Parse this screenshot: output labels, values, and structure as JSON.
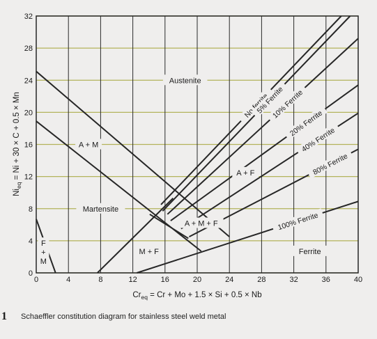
{
  "figure": {
    "number": "1",
    "caption": "Schaeffler constitution diagram for stainless steel weld metal"
  },
  "colors": {
    "background": "#efeeed",
    "grid_vertical": "#2a2a2a",
    "grid_horizontal": "#b3b35a",
    "line": "#262626"
  },
  "chart_data": {
    "type": "line",
    "title": "",
    "xlabel": {
      "main": "Cr",
      "sub": "eq",
      "rest": " = Cr + Mo + 1.5 × Si + 0.5 × Nb"
    },
    "ylabel": {
      "main": "Ni",
      "sub": "eq",
      "rest": " = Ni + 30 × C + 0.5 × Mn"
    },
    "xlim": [
      0,
      40
    ],
    "ylim": [
      0,
      32
    ],
    "xticks": [
      "0",
      "4",
      "8",
      "12",
      "16",
      "20",
      "24",
      "28",
      "32",
      "36",
      "40"
    ],
    "yticks": [
      "0",
      "4",
      "8",
      "12",
      "16",
      "20",
      "24",
      "28",
      "32"
    ],
    "grid": true,
    "ferrite_lines": [
      {
        "label": "No ferrite",
        "from": [
          15.5,
          8.5
        ],
        "to": [
          37.9,
          32
        ]
      },
      {
        "label": "5% Ferrite",
        "from": [
          15.7,
          7.7
        ],
        "to": [
          39.0,
          32
        ]
      },
      {
        "label": "10% Ferrite",
        "from": [
          16.3,
          7.3
        ],
        "to": [
          40,
          29.2
        ]
      },
      {
        "label": "20% Ferrite",
        "from": [
          16.7,
          6.5
        ],
        "to": [
          40,
          23.4
        ]
      },
      {
        "label": "40% Ferrite",
        "from": [
          18.0,
          5.5
        ],
        "to": [
          40,
          19.9
        ]
      },
      {
        "label": "80% Ferrite",
        "from": [
          19.0,
          4.5
        ],
        "to": [
          40,
          15.4
        ]
      },
      {
        "label": "100% Ferrite",
        "from": [
          12.5,
          0
        ],
        "to": [
          40,
          8.9
        ]
      }
    ],
    "boundaries": [
      {
        "name": "austenite-martensite",
        "from": [
          0,
          25.1
        ],
        "to": [
          24.0,
          4.5
        ]
      },
      {
        "name": "martensite-upper",
        "from": [
          0,
          18.9
        ],
        "to": [
          20.5,
          2.7
        ]
      },
      {
        "name": "martensite-ferrite",
        "from": [
          7.6,
          0
        ],
        "to": [
          17.0,
          9.3
        ]
      },
      {
        "name": "a-m-f-side",
        "from": [
          14.1,
          7.3
        ],
        "to": [
          18.9,
          4.3
        ]
      },
      {
        "name": "f-m-corner",
        "from": [
          0,
          6.7
        ],
        "to": [
          2.4,
          0
        ]
      }
    ],
    "regions": [
      {
        "label": "Austenite",
        "x": 18.5,
        "y": 24
      },
      {
        "label": "A + M",
        "x": 6.5,
        "y": 16
      },
      {
        "label": "Martensite",
        "x": 8,
        "y": 8
      },
      {
        "label": "A + F",
        "x": 26,
        "y": 12.5
      },
      {
        "label": "A + M + F",
        "x": 20.5,
        "y": 6.2
      },
      {
        "label": "M + F",
        "x": 14,
        "y": 2.7
      },
      {
        "label": "Ferrite",
        "x": 34,
        "y": 2.7
      },
      {
        "label": "F\n+\nM",
        "x": 0.9,
        "y": 2.5
      }
    ]
  }
}
